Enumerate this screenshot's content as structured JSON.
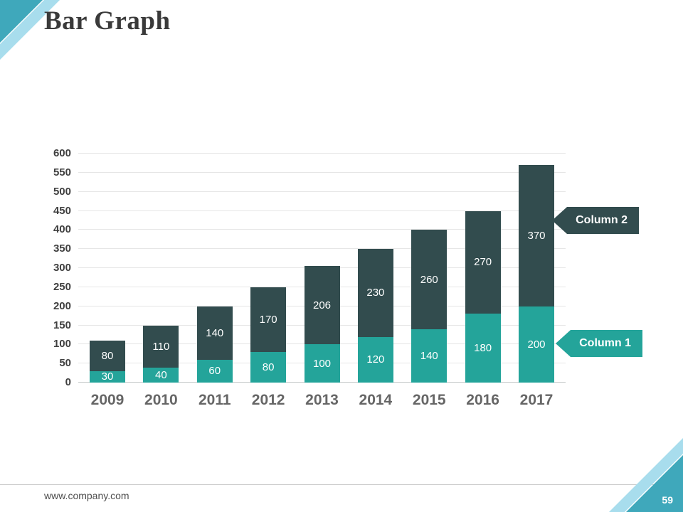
{
  "slide": {
    "title": "Bar Graph",
    "footer": {
      "website": "www.company.com",
      "page_number": "59"
    },
    "colors": {
      "accent_teal": "#3fa8bb",
      "accent_light": "#a8dded",
      "corner_fill_teal": "#3fa8bb"
    }
  },
  "chart_data": {
    "type": "bar",
    "stacked": true,
    "title": "Bar Graph",
    "categories": [
      "2009",
      "2010",
      "2011",
      "2012",
      "2013",
      "2014",
      "2015",
      "2016",
      "2017"
    ],
    "series": [
      {
        "name": "Column 1",
        "color": "#24a49a",
        "values": [
          30,
          40,
          60,
          80,
          100,
          120,
          140,
          180,
          200
        ]
      },
      {
        "name": "Column 2",
        "color": "#324c4e",
        "values": [
          80,
          110,
          140,
          170,
          206,
          230,
          260,
          270,
          370
        ]
      }
    ],
    "ylim": [
      0,
      600
    ],
    "ytick_step": 50,
    "yticks": [
      0,
      50,
      100,
      150,
      200,
      250,
      300,
      350,
      400,
      450,
      500,
      550,
      600
    ],
    "grid": "horizontal",
    "legend_position": "right-callouts",
    "callouts": [
      {
        "label": "Column 2",
        "color": "#324c4e"
      },
      {
        "label": "Column 1",
        "color": "#24a49a"
      }
    ]
  }
}
